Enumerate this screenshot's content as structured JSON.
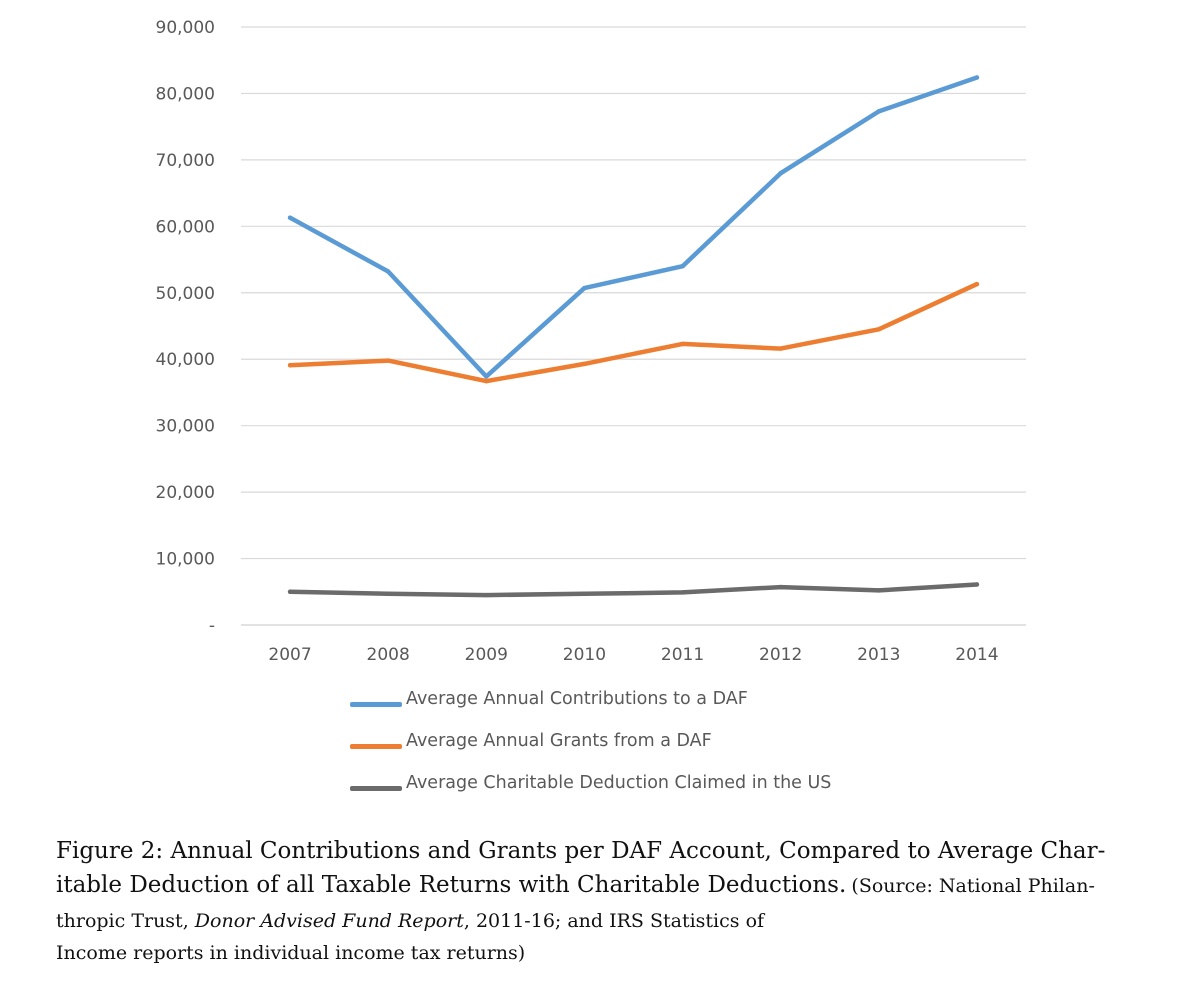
{
  "chart_data": {
    "type": "line",
    "categories": [
      "2007",
      "2008",
      "2009",
      "2010",
      "2011",
      "2012",
      "2013",
      "2014"
    ],
    "ylim": [
      0,
      90000
    ],
    "yticks": [
      "-",
      "10,000",
      "20,000",
      "30,000",
      "40,000",
      "50,000",
      "60,000",
      "70,000",
      "80,000",
      "90,000"
    ],
    "grid": true,
    "legend_position": "bottom",
    "series": [
      {
        "name": "Average Annual Contributions to a DAF",
        "color": "#5b9bd5",
        "values": [
          61300,
          53200,
          37400,
          50700,
          54000,
          68000,
          77300,
          82400
        ]
      },
      {
        "name": "Average Annual Grants from a DAF",
        "color": "#ed7d31",
        "values": [
          39100,
          39800,
          36700,
          39300,
          42300,
          41600,
          44500,
          51300
        ]
      },
      {
        "name": "Average Charitable Deduction Claimed in the US",
        "color": "#6b6b6b",
        "values": [
          5000,
          4700,
          4500,
          4700,
          4900,
          5700,
          5200,
          6100
        ]
      }
    ]
  },
  "caption": {
    "line1": "Figure 2: Annual Contributions and Grants per DAF Account, Compared to Average Char-",
    "line2_main": "itable Deduction of all Taxable Returns with Charitable Deductions.",
    "line2_small": "(Source: National Philan-",
    "line3_pre": "thropic Trust,",
    "line3_italic": "Donor Advised Fund Report",
    "line3_post": ", 2011-16; and IRS Statistics of",
    "line4": "Income reports in individual income tax returns)"
  }
}
